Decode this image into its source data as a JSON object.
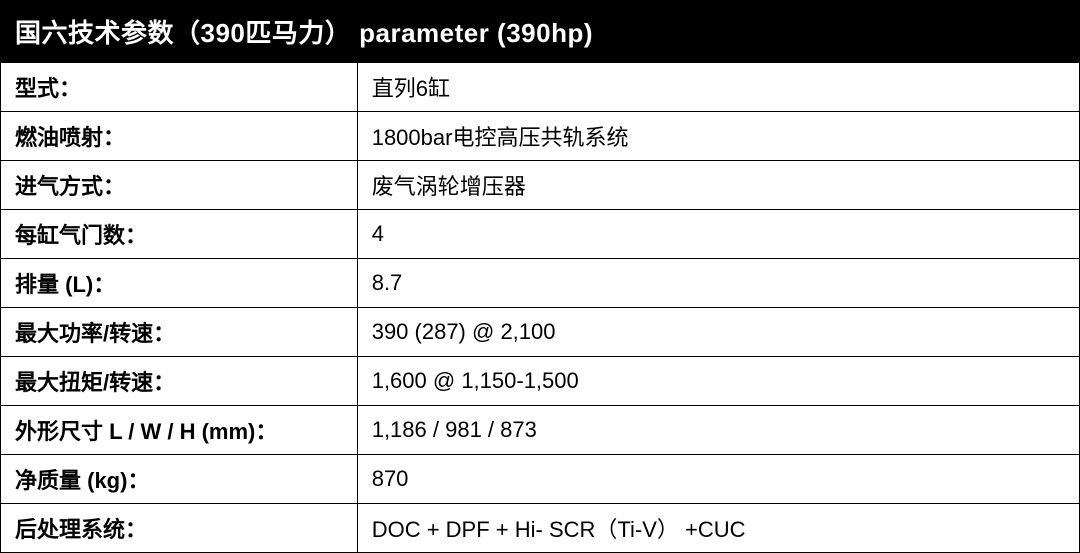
{
  "table": {
    "title": "国六技术参数（390匹马力） parameter (390hp)",
    "title_fontsize": 26,
    "title_bg": "#000000",
    "title_color": "#ffffff",
    "border_color": "#000000",
    "label_column_width": 357,
    "value_column_width": 723,
    "cell_fontsize": 22,
    "label_fontweight": 700,
    "value_fontweight": 500,
    "rows": [
      {
        "label": "型式：",
        "value": "直列6缸"
      },
      {
        "label": "燃油喷射：",
        "value": "1800bar电控高压共轨系统"
      },
      {
        "label": "进气方式：",
        "value": "废气涡轮增压器"
      },
      {
        "label": "每缸气门数：",
        "value": "4"
      },
      {
        "label": "排量 (L)：",
        "value": "8.7"
      },
      {
        "label": "最大功率/转速：",
        "value": "390 (287) @ 2,100"
      },
      {
        "label": "最大扭矩/转速：",
        "value": "1,600 @ 1,150-1,500"
      },
      {
        "label": "外形尺寸 L / W / H (mm)：",
        "value": "1,186 / 981 / 873"
      },
      {
        "label": "净质量 (kg)：",
        "value": "870"
      },
      {
        "label": "后处理系统：",
        "value": "DOC + DPF + Hi- SCR（Ti-V） +CUC"
      }
    ]
  }
}
